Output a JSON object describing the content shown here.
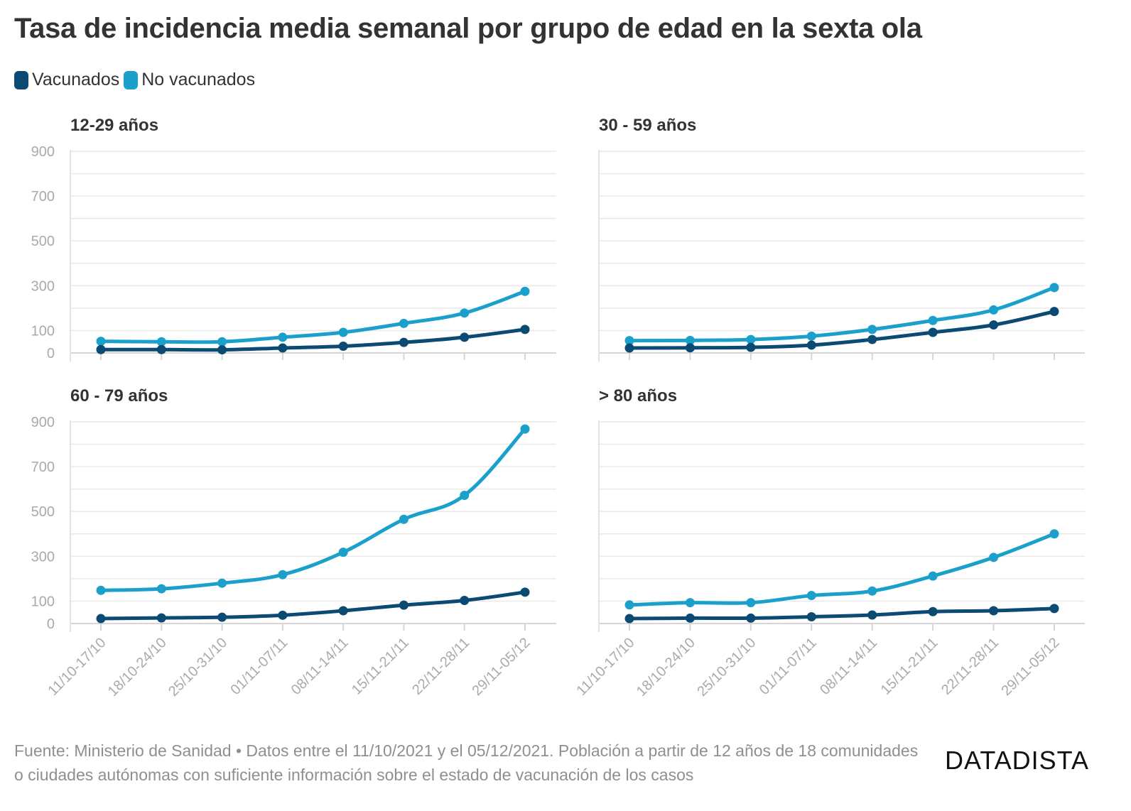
{
  "header": {
    "title": "Tasa de incidencia media semanal por grupo de edad en la sexta ola"
  },
  "legend": [
    {
      "label": "Vacunados",
      "color": "#0b4a72"
    },
    {
      "label": "No vacunados",
      "color": "#1ba0cc"
    }
  ],
  "footer": {
    "source": "Fuente: Ministerio de Sanidad • Datos entre el 11/10/2021 y el 05/12/2021. Población a partir de 12 años de 18 comunidades o ciudades autónomas con suficiente información sobre el estado de vacunación de los casos",
    "brand": "DATADISTA"
  },
  "chart_data": [
    {
      "type": "line",
      "title": "12-29 años",
      "categories": [
        "11/10-17/10",
        "18/10-24/10",
        "25/10-31/10",
        "01/11-07/11",
        "08/11-14/11",
        "15/11-21/11",
        "22/11-28/11",
        "29/11-05/12"
      ],
      "yticks": [
        0,
        100,
        300,
        500,
        700,
        900
      ],
      "ylim": [
        0,
        900
      ],
      "series": [
        {
          "name": "Vacunados",
          "color": "#0b4a72",
          "values": [
            15,
            15,
            14,
            22,
            30,
            47,
            70,
            105
          ]
        },
        {
          "name": "No vacunados",
          "color": "#1ba0cc",
          "values": [
            52,
            50,
            50,
            70,
            92,
            132,
            178,
            275
          ]
        }
      ]
    },
    {
      "type": "line",
      "title": "30 - 59 años",
      "categories": [
        "11/10-17/10",
        "18/10-24/10",
        "25/10-31/10",
        "01/11-07/11",
        "08/11-14/11",
        "15/11-21/11",
        "22/11-28/11",
        "29/11-05/12"
      ],
      "yticks": [
        0,
        100,
        300,
        500,
        700,
        900
      ],
      "ylim": [
        0,
        900
      ],
      "series": [
        {
          "name": "Vacunados",
          "color": "#0b4a72",
          "values": [
            22,
            23,
            25,
            35,
            60,
            92,
            125,
            185
          ]
        },
        {
          "name": "No vacunados",
          "color": "#1ba0cc",
          "values": [
            55,
            56,
            60,
            75,
            105,
            145,
            192,
            292
          ]
        }
      ]
    },
    {
      "type": "line",
      "title": "60 - 79 años",
      "categories": [
        "11/10-17/10",
        "18/10-24/10",
        "25/10-31/10",
        "01/11-07/11",
        "08/11-14/11",
        "15/11-21/11",
        "22/11-28/11",
        "29/11-05/12"
      ],
      "yticks": [
        0,
        100,
        300,
        500,
        700,
        900
      ],
      "ylim": [
        0,
        900
      ],
      "series": [
        {
          "name": "Vacunados",
          "color": "#0b4a72",
          "values": [
            22,
            25,
            28,
            37,
            57,
            82,
            103,
            140
          ]
        },
        {
          "name": "No vacunados",
          "color": "#1ba0cc",
          "values": [
            148,
            155,
            180,
            218,
            318,
            465,
            572,
            868
          ]
        }
      ]
    },
    {
      "type": "line",
      "title": "> 80 años",
      "categories": [
        "11/10-17/10",
        "18/10-24/10",
        "25/10-31/10",
        "01/11-07/11",
        "08/11-14/11",
        "15/11-21/11",
        "22/11-28/11",
        "29/11-05/12"
      ],
      "yticks": [
        0,
        100,
        300,
        500,
        700,
        900
      ],
      "ylim": [
        0,
        900
      ],
      "series": [
        {
          "name": "Vacunados",
          "color": "#0b4a72",
          "values": [
            22,
            24,
            24,
            30,
            38,
            53,
            57,
            67
          ]
        },
        {
          "name": "No vacunados",
          "color": "#1ba0cc",
          "values": [
            83,
            93,
            93,
            125,
            145,
            212,
            295,
            400
          ]
        }
      ]
    }
  ]
}
